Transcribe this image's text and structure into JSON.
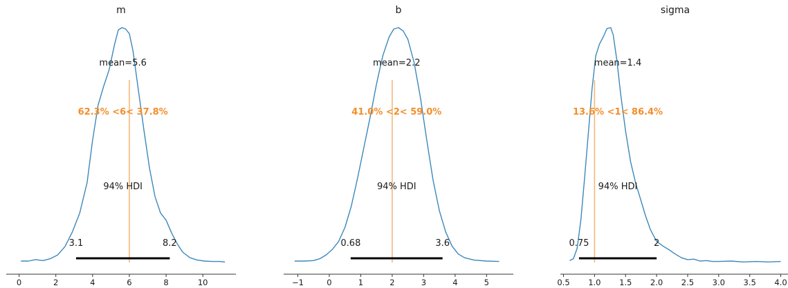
{
  "colors": {
    "kde": "#3b88b8",
    "reference": "#f28e2b",
    "reference_line": "#f5b87a",
    "hdi": "#000000",
    "axis": "#333333"
  },
  "chart_data": [
    {
      "type": "line",
      "title": "m",
      "xlim": [
        -0.7,
        11.8
      ],
      "xticks": [
        0,
        2,
        4,
        6,
        8,
        10
      ],
      "xtick_labels": [
        "0",
        "2",
        "4",
        "6",
        "8",
        "10"
      ],
      "mean_label": "mean=5.6",
      "ref_value": 6,
      "ref_label": "62.3% <6< 37.8%",
      "hdi_label": "94% HDI",
      "hdi": [
        3.1,
        8.2
      ],
      "hdi_low_label": "3.1",
      "hdi_high_label": "8.2",
      "density": {
        "x": [
          0.1,
          0.5,
          0.9,
          1.3,
          1.7,
          2.1,
          2.5,
          2.9,
          3.3,
          3.7,
          4.0,
          4.3,
          4.6,
          4.9,
          5.2,
          5.4,
          5.6,
          5.8,
          6.0,
          6.2,
          6.5,
          6.8,
          7.1,
          7.4,
          7.7,
          8.0,
          8.3,
          8.6,
          8.9,
          9.3,
          9.7,
          10.1,
          10.5,
          10.9,
          11.2
        ],
        "y": [
          0.003,
          0.003,
          0.006,
          0.004,
          0.008,
          0.016,
          0.034,
          0.065,
          0.105,
          0.17,
          0.26,
          0.335,
          0.375,
          0.41,
          0.465,
          0.495,
          0.5,
          0.497,
          0.487,
          0.45,
          0.365,
          0.28,
          0.2,
          0.14,
          0.105,
          0.09,
          0.063,
          0.04,
          0.022,
          0.01,
          0.005,
          0.003,
          0.002,
          0.002,
          0.001
        ]
      }
    },
    {
      "type": "line",
      "title": "b",
      "xlim": [
        -1.45,
        5.85
      ],
      "xticks": [
        -1,
        0,
        1,
        2,
        3,
        4,
        5
      ],
      "xtick_labels": [
        "−1",
        "0",
        "1",
        "2",
        "3",
        "4",
        "5"
      ],
      "mean_label": "mean=2.2",
      "ref_value": 2,
      "ref_label": "41.0% <2< 59.0%",
      "hdi_label": "94% HDI",
      "hdi": [
        0.68,
        3.6
      ],
      "hdi_low_label": "0.68",
      "hdi_high_label": "3.6",
      "density": {
        "x": [
          -1.1,
          -0.8,
          -0.5,
          -0.3,
          -0.1,
          0.1,
          0.3,
          0.5,
          0.7,
          0.9,
          1.1,
          1.3,
          1.5,
          1.7,
          1.9,
          2.05,
          2.2,
          2.35,
          2.5,
          2.7,
          2.9,
          3.1,
          3.3,
          3.5,
          3.7,
          3.9,
          4.1,
          4.3,
          4.6,
          5.0,
          5.4
        ],
        "y": [
          0.003,
          0.003,
          0.004,
          0.008,
          0.016,
          0.028,
          0.045,
          0.075,
          0.12,
          0.18,
          0.245,
          0.31,
          0.38,
          0.44,
          0.48,
          0.497,
          0.5,
          0.493,
          0.475,
          0.425,
          0.35,
          0.26,
          0.175,
          0.11,
          0.065,
          0.035,
          0.018,
          0.01,
          0.005,
          0.003,
          0.002
        ]
      }
    },
    {
      "type": "line",
      "title": "sigma",
      "xlim": [
        0.45,
        4.15
      ],
      "xticks": [
        0.5,
        1.0,
        1.5,
        2.0,
        2.5,
        3.0,
        3.5,
        4.0
      ],
      "xtick_labels": [
        "0.5",
        "1.0",
        "1.5",
        "2.0",
        "2.5",
        "3.0",
        "3.5",
        "4.0"
      ],
      "mean_label": "mean=1.4",
      "ref_value": 1,
      "ref_label": "13.6% <1< 86.4%",
      "hdi_label": "94% HDI",
      "hdi": [
        0.75,
        2.0
      ],
      "hdi_low_label": "0.75",
      "hdi_high_label": "2",
      "density": {
        "x": [
          0.6,
          0.66,
          0.72,
          0.78,
          0.84,
          0.9,
          0.96,
          1.02,
          1.08,
          1.14,
          1.2,
          1.26,
          1.3,
          1.36,
          1.42,
          1.5,
          1.58,
          1.66,
          1.74,
          1.82,
          1.9,
          2.0,
          2.1,
          2.2,
          2.3,
          2.4,
          2.5,
          2.6,
          2.7,
          2.8,
          2.9,
          3.0,
          3.2,
          3.4,
          3.6,
          3.8,
          4.0
        ],
        "y": [
          0.004,
          0.008,
          0.03,
          0.09,
          0.18,
          0.275,
          0.37,
          0.44,
          0.465,
          0.48,
          0.498,
          0.5,
          0.485,
          0.43,
          0.36,
          0.28,
          0.215,
          0.17,
          0.135,
          0.1,
          0.07,
          0.045,
          0.035,
          0.027,
          0.018,
          0.01,
          0.006,
          0.007,
          0.003,
          0.004,
          0.002,
          0.002,
          0.003,
          0.001,
          0.002,
          0.001,
          0.002
        ]
      }
    }
  ]
}
